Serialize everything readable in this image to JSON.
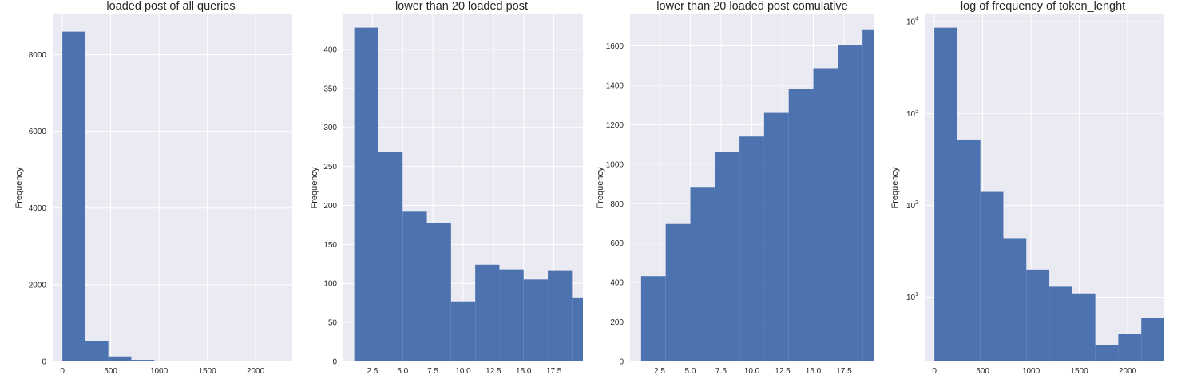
{
  "chart_data": [
    {
      "type": "bar",
      "title": "loaded post of all queries",
      "ylabel": "Frequency",
      "xlabel": "",
      "color": "#4c72b0",
      "xlim": [
        -100,
        2380
      ],
      "ylim": [
        0,
        9050
      ],
      "grid": true,
      "yscale": "linear",
      "bins": [
        {
          "x0": 0,
          "x1": 238,
          "count": 8600
        },
        {
          "x0": 238,
          "x1": 476,
          "count": 520
        },
        {
          "x0": 476,
          "x1": 714,
          "count": 130
        },
        {
          "x0": 714,
          "x1": 952,
          "count": 40
        },
        {
          "x0": 952,
          "x1": 1190,
          "count": 18
        },
        {
          "x0": 1190,
          "x1": 1428,
          "count": 12
        },
        {
          "x0": 1428,
          "x1": 1666,
          "count": 10
        },
        {
          "x0": 1666,
          "x1": 1904,
          "count": 3
        },
        {
          "x0": 1904,
          "x1": 2142,
          "count": 4
        },
        {
          "x0": 2142,
          "x1": 2380,
          "count": 6
        }
      ],
      "xticks": [
        {
          "value": 0,
          "label": "0"
        },
        {
          "value": 500,
          "label": "500"
        },
        {
          "value": 1000,
          "label": "1000"
        },
        {
          "value": 1500,
          "label": "1500"
        },
        {
          "value": 2000,
          "label": "2000"
        }
      ],
      "yticks": [
        {
          "value": 0,
          "label": "0"
        },
        {
          "value": 2000,
          "label": "2000"
        },
        {
          "value": 4000,
          "label": "4000"
        },
        {
          "value": 6000,
          "label": "6000"
        },
        {
          "value": 8000,
          "label": "8000"
        }
      ]
    },
    {
      "type": "bar",
      "title": "lower than 20 loaded post",
      "ylabel": "Frequency",
      "xlabel": "",
      "color": "#4c72b0",
      "xlim": [
        0.1,
        19.9
      ],
      "ylim": [
        0,
        445
      ],
      "grid": true,
      "yscale": "linear",
      "bins": [
        {
          "x0": 1.0,
          "x1": 3.0,
          "count": 428
        },
        {
          "x0": 3.0,
          "x1": 5.0,
          "count": 268
        },
        {
          "x0": 5.0,
          "x1": 7.0,
          "count": 192
        },
        {
          "x0": 7.0,
          "x1": 9.0,
          "count": 177
        },
        {
          "x0": 9.0,
          "x1": 11.0,
          "count": 77
        },
        {
          "x0": 11.0,
          "x1": 13.0,
          "count": 124
        },
        {
          "x0": 13.0,
          "x1": 15.0,
          "count": 118
        },
        {
          "x0": 15.0,
          "x1": 17.0,
          "count": 105
        },
        {
          "x0": 17.0,
          "x1": 19.0,
          "count": 116
        },
        {
          "x0": 19.0,
          "x1": 21.0,
          "count": 82
        }
      ],
      "xticks": [
        {
          "value": 2.5,
          "label": "2.5"
        },
        {
          "value": 5.0,
          "label": "5.0"
        },
        {
          "value": 7.5,
          "label": "7.5"
        },
        {
          "value": 10.0,
          "label": "10.0"
        },
        {
          "value": 12.5,
          "label": "12.5"
        },
        {
          "value": 15.0,
          "label": "15.0"
        },
        {
          "value": 17.5,
          "label": "17.5"
        }
      ],
      "yticks": [
        {
          "value": 0,
          "label": "0"
        },
        {
          "value": 50,
          "label": "50"
        },
        {
          "value": 100,
          "label": "100"
        },
        {
          "value": 150,
          "label": "150"
        },
        {
          "value": 200,
          "label": "200"
        },
        {
          "value": 250,
          "label": "250"
        },
        {
          "value": 300,
          "label": "300"
        },
        {
          "value": 350,
          "label": "350"
        },
        {
          "value": 400,
          "label": "400"
        }
      ]
    },
    {
      "type": "bar",
      "title": "lower than 20 loaded post comulative",
      "ylabel": "Frequency",
      "xlabel": "",
      "color": "#4c72b0",
      "xlim": [
        0.1,
        19.9
      ],
      "ylim": [
        0,
        1760
      ],
      "grid": true,
      "yscale": "linear",
      "bins": [
        {
          "x0": 1.0,
          "x1": 3.0,
          "count": 432
        },
        {
          "x0": 3.0,
          "x1": 5.0,
          "count": 697
        },
        {
          "x0": 5.0,
          "x1": 7.0,
          "count": 885
        },
        {
          "x0": 7.0,
          "x1": 9.0,
          "count": 1062
        },
        {
          "x0": 9.0,
          "x1": 11.0,
          "count": 1140
        },
        {
          "x0": 11.0,
          "x1": 13.0,
          "count": 1264
        },
        {
          "x0": 13.0,
          "x1": 15.0,
          "count": 1382
        },
        {
          "x0": 15.0,
          "x1": 17.0,
          "count": 1487
        },
        {
          "x0": 17.0,
          "x1": 19.0,
          "count": 1602
        },
        {
          "x0": 19.0,
          "x1": 21.0,
          "count": 1684
        }
      ],
      "xticks": [
        {
          "value": 2.5,
          "label": "2.5"
        },
        {
          "value": 5.0,
          "label": "5.0"
        },
        {
          "value": 7.5,
          "label": "7.5"
        },
        {
          "value": 10.0,
          "label": "10.0"
        },
        {
          "value": 12.5,
          "label": "12.5"
        },
        {
          "value": 15.0,
          "label": "15.0"
        },
        {
          "value": 17.5,
          "label": "17.5"
        }
      ],
      "yticks": [
        {
          "value": 0,
          "label": "0"
        },
        {
          "value": 200,
          "label": "200"
        },
        {
          "value": 400,
          "label": "400"
        },
        {
          "value": 600,
          "label": "600"
        },
        {
          "value": 800,
          "label": "800"
        },
        {
          "value": 1000,
          "label": "1000"
        },
        {
          "value": 1200,
          "label": "1200"
        },
        {
          "value": 1400,
          "label": "1400"
        },
        {
          "value": 1600,
          "label": "1600"
        }
      ]
    },
    {
      "type": "bar",
      "title": "log of frequency of token_lenght",
      "ylabel": "Frequency",
      "xlabel": "",
      "color": "#4c72b0",
      "xlim": [
        -100,
        2380
      ],
      "ylim": [
        2.0,
        12000
      ],
      "grid": true,
      "yscale": "log",
      "bins": [
        {
          "x0": 0,
          "x1": 238,
          "count": 8600
        },
        {
          "x0": 238,
          "x1": 476,
          "count": 520
        },
        {
          "x0": 476,
          "x1": 714,
          "count": 140
        },
        {
          "x0": 714,
          "x1": 952,
          "count": 44
        },
        {
          "x0": 952,
          "x1": 1190,
          "count": 20
        },
        {
          "x0": 1190,
          "x1": 1428,
          "count": 13
        },
        {
          "x0": 1428,
          "x1": 1666,
          "count": 11
        },
        {
          "x0": 1666,
          "x1": 1904,
          "count": 3
        },
        {
          "x0": 1904,
          "x1": 2142,
          "count": 4
        },
        {
          "x0": 2142,
          "x1": 2380,
          "count": 6
        }
      ],
      "xticks": [
        {
          "value": 0,
          "label": "0"
        },
        {
          "value": 500,
          "label": "500"
        },
        {
          "value": 1000,
          "label": "1000"
        },
        {
          "value": 1500,
          "label": "1500"
        },
        {
          "value": 2000,
          "label": "2000"
        }
      ],
      "yticks": [
        {
          "value": 10,
          "base": "10",
          "exp": "1"
        },
        {
          "value": 100,
          "base": "10",
          "exp": "2"
        },
        {
          "value": 1000,
          "base": "10",
          "exp": "3"
        },
        {
          "value": 10000,
          "base": "10",
          "exp": "4"
        }
      ]
    }
  ]
}
